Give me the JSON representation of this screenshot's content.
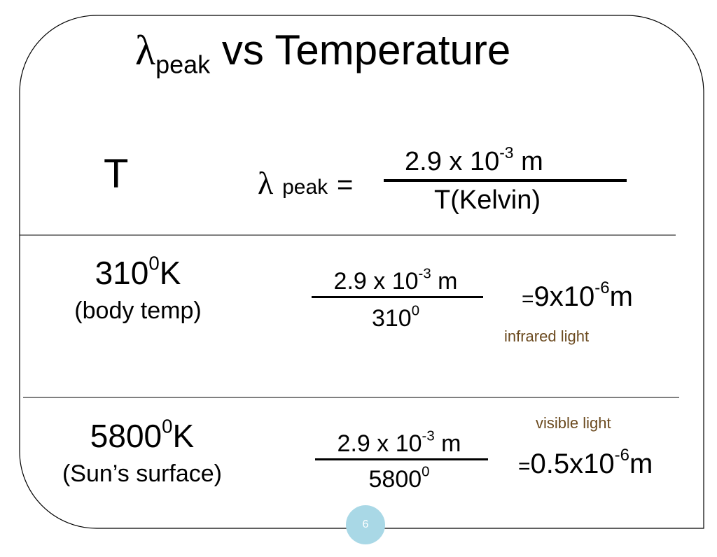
{
  "title": {
    "symbol": "λ",
    "subscript": "peak",
    "rest": "vs Temperature"
  },
  "header": {
    "left": "T",
    "formula": {
      "symbol": "λ",
      "subscript": "peak",
      "equals": "=",
      "numerator": {
        "base": "2.9 x 10",
        "exp": "-3",
        "unit": "m"
      },
      "denominator": "T(Kelvin)"
    }
  },
  "rows": [
    {
      "temp": {
        "base": "310",
        "exp": "0",
        "unit": "K"
      },
      "note": "(body temp)",
      "numerator": {
        "base": "2.9 x 10",
        "exp": "-3",
        "unit": "m"
      },
      "denominator": {
        "base": "310",
        "exp": "0"
      },
      "equals": "=",
      "result": {
        "base": "9x10",
        "exp": "-6",
        "unit": "m"
      },
      "label": "infrared light"
    },
    {
      "temp": {
        "base": "5800",
        "exp": "0",
        "unit": "K"
      },
      "note": "(Sun’s surface)",
      "numerator": {
        "base": "2.9 x 10",
        "exp": "-3",
        "unit": "m"
      },
      "denominator": {
        "base": "5800",
        "exp": "0"
      },
      "equals": "=",
      "result": {
        "base": "0.5x10",
        "exp": "-6",
        "unit": "m"
      },
      "label": "visible light"
    }
  ],
  "page_number": "6"
}
